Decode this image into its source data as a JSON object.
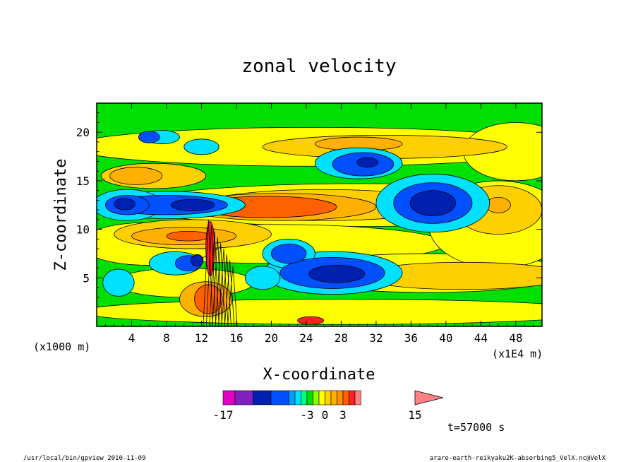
{
  "chart_data": {
    "type": "heatmap",
    "title": "zonal velocity",
    "xlabel": "X-coordinate",
    "ylabel": "Z-coordinate",
    "x_unit_left": "(x1000 m)",
    "x_unit_right": "(x1E4 m)",
    "xlim": [
      0,
      51
    ],
    "ylim": [
      0,
      23
    ],
    "x_ticks": [
      4,
      8,
      12,
      16,
      20,
      24,
      28,
      32,
      36,
      40,
      44,
      48
    ],
    "y_ticks": [
      5,
      10,
      15,
      20
    ],
    "colorbar": {
      "levels": [
        -17,
        -15,
        -12,
        -9,
        -6,
        -5,
        -4,
        -3,
        -2,
        -1,
        0,
        1,
        2,
        3,
        4,
        5,
        6,
        8,
        11,
        15
      ],
      "labels": [
        {
          "text": "-17",
          "value": -17
        },
        {
          "text": "-3",
          "value": -3
        },
        {
          "text": "0",
          "value": 0
        },
        {
          "text": "3",
          "value": 3
        },
        {
          "text": "15",
          "value": 15
        }
      ],
      "colors": [
        "#e000c0",
        "#8020c0",
        "#0020b0",
        "#0050ff",
        "#00a0ff",
        "#00e0ff",
        "#00ff80",
        "#00e000",
        "#90ff00",
        "#ffff00",
        "#ffd000",
        "#ffb000",
        "#ff9000",
        "#ff6000",
        "#ff2020",
        "#ff8080"
      ],
      "extend": "max"
    },
    "time_label": "t=57000 s",
    "regions": [
      {
        "level": "very negative",
        "x": [
          36,
          41
        ],
        "y": [
          11.5,
          14
        ]
      },
      {
        "level": "very negative",
        "x": [
          25,
          30
        ],
        "y": [
          4.5,
          6.5
        ]
      },
      {
        "level": "very negative",
        "x": [
          3,
          5
        ],
        "y": [
          11.5,
          13.5
        ]
      },
      {
        "level": "very negative",
        "x": [
          7,
          13
        ],
        "y": [
          11.5,
          13
        ]
      },
      {
        "level": "strong positive",
        "x": [
          16,
          24
        ],
        "y": [
          11,
          13
        ]
      },
      {
        "level": "strong positive",
        "x": [
          11.5,
          13.5
        ],
        "y": [
          2,
          5
        ]
      },
      {
        "level": "positive",
        "x": [
          3,
          6
        ],
        "y": [
          15,
          16
        ]
      },
      {
        "level": "positive",
        "x": [
          8,
          12
        ],
        "y": [
          8.5,
          10
        ]
      }
    ]
  },
  "footer": {
    "left": "/usr/local/bin/gpview  2010-11-09",
    "right": "arare-earth-reikyaku2K-absorbing5_VelX.nc@VelX"
  }
}
